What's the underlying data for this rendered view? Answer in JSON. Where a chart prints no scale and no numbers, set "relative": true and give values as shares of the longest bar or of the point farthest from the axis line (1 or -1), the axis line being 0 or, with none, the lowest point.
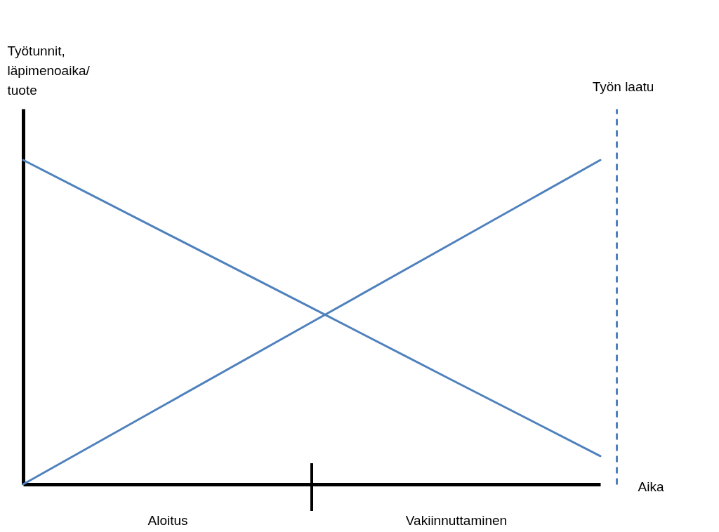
{
  "chart_data": {
    "type": "line",
    "relative": true,
    "xlabel": "Aika",
    "ylabel": "Työtunnit, läpimenoaika/ tuote",
    "y2label": "Työn laatu",
    "categories": [
      null,
      "Aloitus",
      null,
      "Vakiinnuttaminen",
      null
    ],
    "series": [
      {
        "color": "#4f81bd",
        "values": [
          1,
          0.772,
          0.544,
          0.315,
          0.087
        ]
      },
      {
        "color": "#4f81bd",
        "axis": "y2",
        "values": [
          0,
          0.25,
          0.5,
          0.75,
          1
        ]
      }
    ]
  }
}
